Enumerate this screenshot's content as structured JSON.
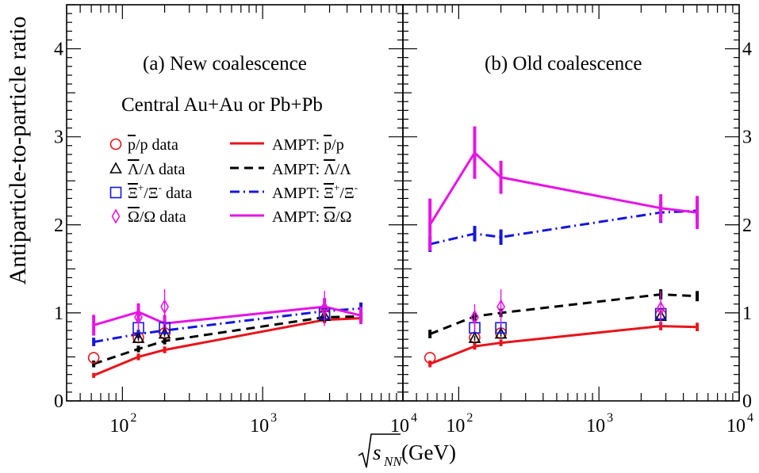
{
  "figure": {
    "ylabel": "Antiparticle-to-particle ratio",
    "xlabel_sqrt": "s",
    "xlabel_sub": "NN",
    "xlabel_unit": "(GeV)"
  },
  "colors": {
    "red": "#e8141a",
    "black": "#000000",
    "blue": "#1515e0",
    "magenta": "#e614e6"
  },
  "chart_data": [
    {
      "type": "line",
      "panel": "a",
      "title": "(a) New coalescence",
      "subtitle": "Central Au+Au or Pb+Pb",
      "xscale": "log",
      "xlim": [
        40,
        10000
      ],
      "ylim": [
        0,
        4.5
      ],
      "yticks": [
        0,
        1,
        2,
        3,
        4
      ],
      "xticks": [
        {
          "v": 100,
          "label": "10",
          "exp": "2"
        },
        {
          "v": 1000,
          "label": "10",
          "exp": "3"
        },
        {
          "v": 10000,
          "label": "10",
          "exp": "4"
        }
      ],
      "legend": [
        {
          "marker": "circle",
          "color": "red",
          "pre": "",
          "bar": "p",
          "post": "/p data"
        },
        {
          "marker": "triangle",
          "color": "black",
          "pre": "",
          "bar": "Λ",
          "post": "/Λ data"
        },
        {
          "marker": "square",
          "color": "blue",
          "pre": "",
          "bar": "Ξ",
          "sup": "+",
          "post": "/Ξ",
          "sup2": "-",
          "post2": " data"
        },
        {
          "marker": "diamond",
          "color": "magenta",
          "pre": "",
          "bar": "Ω",
          "post": "/Ω data"
        },
        {
          "line": "solid",
          "color": "red",
          "pre": "AMPT: ",
          "bar": "p",
          "post": "/p"
        },
        {
          "line": "dashed",
          "color": "black",
          "pre": "AMPT: ",
          "bar": "Λ",
          "post": "/Λ"
        },
        {
          "line": "dashdot",
          "color": "blue",
          "pre": "AMPT: ",
          "bar": "Ξ",
          "sup": "+",
          "post": "/Ξ",
          "sup2": "-",
          "post2": ""
        },
        {
          "line": "solid",
          "color": "magenta",
          "pre": "AMPT: ",
          "bar": "Ω",
          "post": "/Ω"
        }
      ],
      "series": [
        {
          "kind": "line",
          "style": "solid",
          "color": "red",
          "x": [
            62.4,
            130,
            200,
            2760,
            5020
          ],
          "y": [
            0.29,
            0.5,
            0.58,
            0.92,
            0.94
          ],
          "err": [
            0.01,
            0.02,
            0.02,
            0.02,
            0.02
          ]
        },
        {
          "kind": "line",
          "style": "dashed",
          "color": "black",
          "x": [
            62.4,
            130,
            200,
            2760,
            5020
          ],
          "y": [
            0.42,
            0.59,
            0.68,
            0.95,
            0.96
          ],
          "err": [
            0.02,
            0.02,
            0.02,
            0.03,
            0.03
          ]
        },
        {
          "kind": "line",
          "style": "dashdot",
          "color": "blue",
          "x": [
            62.4,
            130,
            200,
            2760,
            5020
          ],
          "y": [
            0.67,
            0.76,
            0.8,
            1.02,
            1.05
          ],
          "err": [
            0.03,
            0.03,
            0.03,
            0.05,
            0.05
          ]
        },
        {
          "kind": "line",
          "style": "solid",
          "color": "magenta",
          "x": [
            62.4,
            130,
            200,
            2760,
            5020
          ],
          "y": [
            0.86,
            1.01,
            0.88,
            1.07,
            0.97
          ],
          "err": [
            0.1,
            0.08,
            0.08,
            0.08,
            0.08
          ]
        },
        {
          "kind": "points",
          "marker": "circle",
          "color": "red",
          "x": [
            62.4,
            130,
            200,
            2760
          ],
          "y": [
            0.49,
            0.72,
            0.77,
            0.98
          ],
          "err": [
            0,
            0.02,
            0.03,
            0.05
          ]
        },
        {
          "kind": "points",
          "marker": "triangle",
          "color": "black",
          "x": [
            130,
            200,
            2760
          ],
          "y": [
            0.71,
            0.76,
            0.96
          ],
          "err": [
            0.03,
            0.03,
            0.06
          ]
        },
        {
          "kind": "points",
          "marker": "square",
          "color": "blue",
          "x": [
            130,
            200,
            2760
          ],
          "y": [
            0.83,
            0.83,
            0.99
          ],
          "err": [
            0.05,
            0.05,
            0.07
          ]
        },
        {
          "kind": "points",
          "marker": "diamond",
          "color": "magenta",
          "x": [
            130,
            200,
            2760
          ],
          "y": [
            0.95,
            1.07,
            1.05
          ],
          "err": [
            0.15,
            0.2,
            0.2
          ]
        }
      ]
    },
    {
      "type": "line",
      "panel": "b",
      "title": "(b) Old coalescence",
      "xscale": "log",
      "xlim": [
        40,
        10000
      ],
      "ylim": [
        0,
        4.5
      ],
      "yticks": [
        0,
        1,
        2,
        3,
        4
      ],
      "xticks": [
        {
          "v": 100,
          "label": "10",
          "exp": "2"
        },
        {
          "v": 1000,
          "label": "10",
          "exp": "3"
        },
        {
          "v": 10000,
          "label": "10",
          "exp": "4"
        }
      ],
      "series": [
        {
          "kind": "line",
          "style": "solid",
          "color": "red",
          "x": [
            62.4,
            130,
            200,
            2760,
            5020
          ],
          "y": [
            0.42,
            0.62,
            0.66,
            0.85,
            0.84
          ],
          "err": [
            0.02,
            0.02,
            0.02,
            0.03,
            0.03
          ]
        },
        {
          "kind": "line",
          "style": "dashed",
          "color": "black",
          "x": [
            62.4,
            130,
            200,
            2760,
            5020
          ],
          "y": [
            0.76,
            0.96,
            1.0,
            1.21,
            1.19
          ],
          "err": [
            0.03,
            0.03,
            0.03,
            0.04,
            0.04
          ]
        },
        {
          "kind": "line",
          "style": "dashdot",
          "color": "blue",
          "x": [
            62.4,
            130,
            200,
            2760,
            5020
          ],
          "y": [
            1.78,
            1.9,
            1.86,
            2.14,
            2.16
          ],
          "err": [
            0.07,
            0.07,
            0.07,
            0.1,
            0.1
          ]
        },
        {
          "kind": "line",
          "style": "solid",
          "color": "magenta",
          "x": [
            62.4,
            130,
            200,
            2760,
            5020
          ],
          "y": [
            2.0,
            2.82,
            2.54,
            2.19,
            2.14
          ],
          "err": [
            0.28,
            0.28,
            0.17,
            0.14,
            0.17
          ]
        },
        {
          "kind": "points",
          "marker": "circle",
          "color": "red",
          "x": [
            62.4,
            130,
            200,
            2760
          ],
          "y": [
            0.49,
            0.72,
            0.77,
            0.98
          ],
          "err": [
            0,
            0.02,
            0.03,
            0.05
          ]
        },
        {
          "kind": "points",
          "marker": "triangle",
          "color": "black",
          "x": [
            130,
            200,
            2760
          ],
          "y": [
            0.71,
            0.76,
            0.96
          ],
          "err": [
            0.03,
            0.03,
            0.06
          ]
        },
        {
          "kind": "points",
          "marker": "square",
          "color": "blue",
          "x": [
            130,
            200,
            2760
          ],
          "y": [
            0.83,
            0.83,
            0.99
          ],
          "err": [
            0.05,
            0.05,
            0.07
          ]
        },
        {
          "kind": "points",
          "marker": "diamond",
          "color": "magenta",
          "x": [
            130,
            200,
            2760
          ],
          "y": [
            0.95,
            1.07,
            1.05
          ],
          "err": [
            0.15,
            0.2,
            0.2
          ]
        }
      ]
    }
  ]
}
